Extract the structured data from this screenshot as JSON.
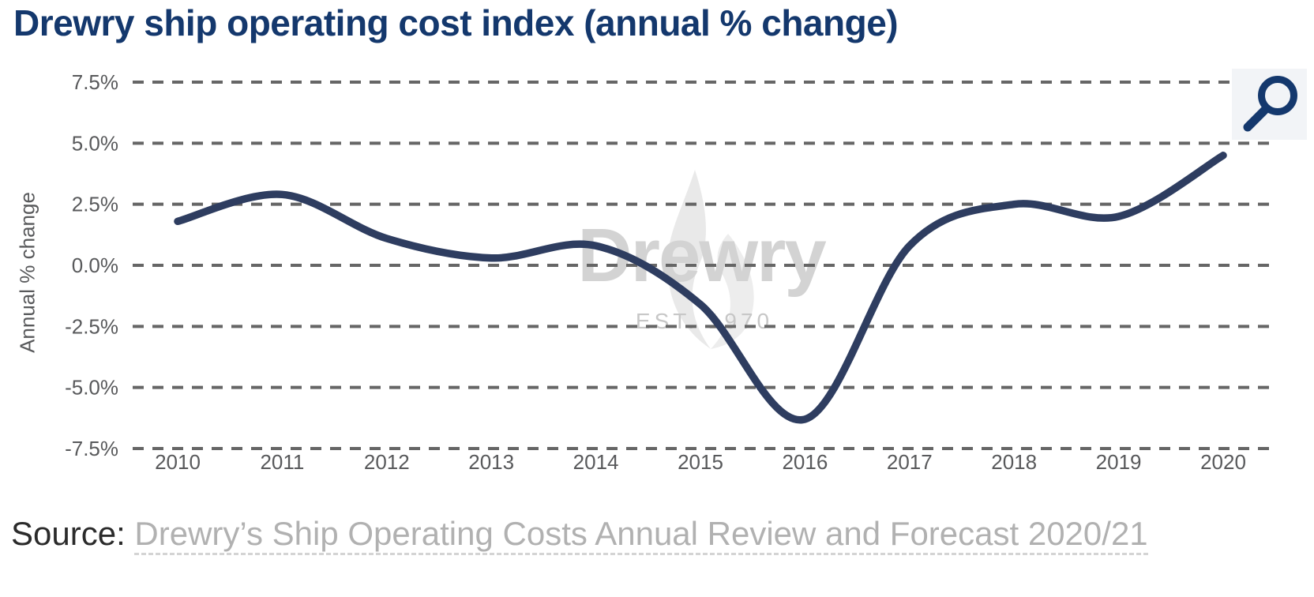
{
  "page": {
    "title": "Drewry ship operating cost index (annual % change)",
    "source_label": "Source:",
    "source_text": "Drewry’s Ship Operating Costs Annual Review and Forecast 2020/21"
  },
  "watermark": {
    "name": "Drewry",
    "est": "EST. 1970"
  },
  "icons": {
    "zoom_button": "magnifier-icon"
  },
  "colors": {
    "title": "#14386d",
    "line": "#2e3d60",
    "grid": "#666666",
    "axis_text": "#58595b",
    "watermark_text": "#d3d3d3",
    "watermark_est": "#c7c7c7",
    "flame_light": "#e9e9e9",
    "flame_lighter": "#ededed",
    "source_label": "#2b2b2b",
    "source_link": "#b1b1b1",
    "zoom_button_bg": "#f2f4f7",
    "icon_navy": "#14386d"
  },
  "chart_data": {
    "type": "line",
    "title": "Drewry ship operating cost index (annual % change)",
    "xlabel": "",
    "ylabel": "Annual % change",
    "categories": [
      "2010",
      "2011",
      "2012",
      "2013",
      "2014",
      "2015",
      "2016",
      "2017",
      "2018",
      "2019",
      "2020"
    ],
    "series": [
      {
        "name": "Annual % change",
        "values": [
          1.8,
          2.9,
          1.1,
          0.3,
          0.8,
          -1.6,
          -6.3,
          0.8,
          2.5,
          2.0,
          4.5
        ]
      }
    ],
    "ylim": [
      -7.5,
      7.5
    ],
    "ytick_values": [
      7.5,
      5.0,
      2.5,
      0.0,
      -2.5,
      -5.0,
      -7.5
    ],
    "ytick_labels": [
      "7.5%",
      "5.0%",
      "2.5%",
      "0.0%",
      "-2.5%",
      "-5.0%",
      "-7.5%"
    ],
    "grid": "horizontal-dashed",
    "legend": "none",
    "line_smoothing": "spline"
  }
}
